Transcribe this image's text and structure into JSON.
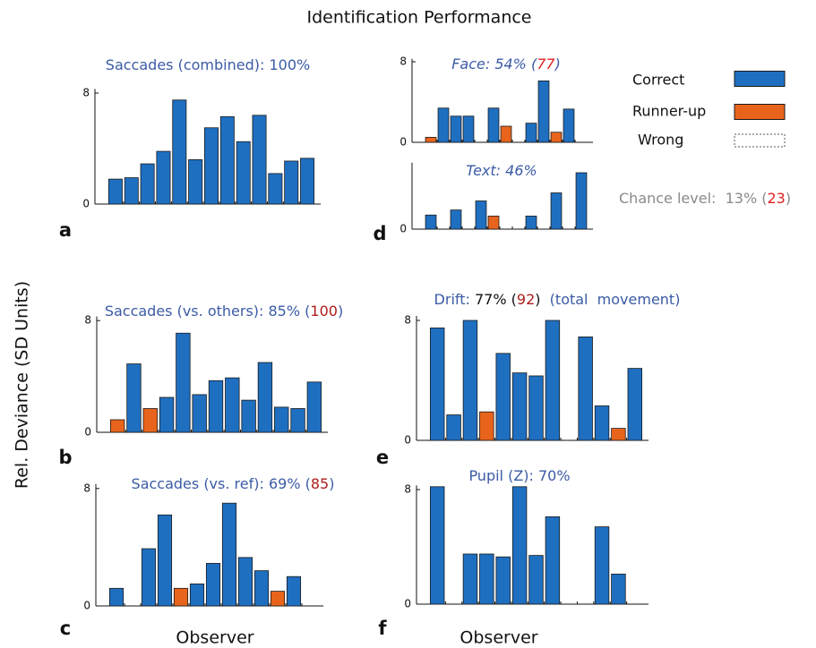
{
  "title": "Identification Performance",
  "y_label": "Rel. Deviance (SD Units)",
  "legend": [
    {
      "name": "Correct",
      "color": "#1f6fc0"
    },
    {
      "name": "Runner-up",
      "color": "#e8641c"
    },
    {
      "name": "Wrong",
      "color": "none"
    }
  ],
  "annotation": [
    {
      "text": "Chance level:  13% (",
      "color": "#8a8a8a"
    },
    {
      "text": "23",
      "color": "#e02020"
    },
    {
      "text": ")",
      "color": "#8a8a8a"
    }
  ],
  "chart_data": [
    {
      "type": "bar",
      "panel": "a",
      "title": [
        {
          "text": "Saccades (combined): 100%",
          "color": "#3b5ba5"
        }
      ],
      "italic": false,
      "values": [
        1.8,
        1.9,
        2.9,
        3.8,
        7.5,
        3.2,
        5.5,
        6.3,
        4.5,
        6.4,
        2.2,
        3.1,
        3.3
      ],
      "colors": [
        "#1f6fc0",
        "#1f6fc0",
        "#1f6fc0",
        "#1f6fc0",
        "#1f6fc0",
        "#1f6fc0",
        "#1f6fc0",
        "#1f6fc0",
        "#1f6fc0",
        "#1f6fc0",
        "#1f6fc0",
        "#1f6fc0",
        "#1f6fc0"
      ],
      "ylim": [
        0,
        8.3
      ],
      "yticks": [
        0,
        8
      ]
    },
    {
      "type": "bar",
      "panel": "b",
      "title": [
        {
          "text": "Saccades (vs. others): 85% (",
          "color": "#3b5ba5"
        },
        {
          "text": "100",
          "color": "#b01c1c"
        },
        {
          "text": ")",
          "color": "#3b5ba5"
        }
      ],
      "italic": false,
      "values": [
        0.9,
        4.9,
        1.7,
        2.5,
        7.1,
        2.7,
        3.7,
        3.9,
        2.3,
        5.0,
        1.8,
        1.7,
        3.6
      ],
      "colors": [
        "#e8641c",
        "#1f6fc0",
        "#e8641c",
        "#1f6fc0",
        "#1f6fc0",
        "#1f6fc0",
        "#1f6fc0",
        "#1f6fc0",
        "#1f6fc0",
        "#1f6fc0",
        "#1f6fc0",
        "#1f6fc0",
        "#1f6fc0"
      ],
      "ylim": [
        0,
        8.3
      ],
      "yticks": [
        0,
        8
      ]
    },
    {
      "type": "bar",
      "panel": "c",
      "x_label": "Observer",
      "title": [
        {
          "text": "Saccades (vs. ref): 69% (",
          "color": "#3b5ba5"
        },
        {
          "text": "85",
          "color": "#b01c1c"
        },
        {
          "text": ")",
          "color": "#3b5ba5"
        }
      ],
      "italic": false,
      "values": [
        1.2,
        null,
        3.9,
        6.2,
        1.2,
        1.5,
        2.9,
        7.0,
        3.3,
        2.4,
        1.0,
        2.0,
        null
      ],
      "colors": [
        "#1f6fc0",
        null,
        "#1f6fc0",
        "#1f6fc0",
        "#e8641c",
        "#1f6fc0",
        "#1f6fc0",
        "#1f6fc0",
        "#1f6fc0",
        "#1f6fc0",
        "#e8641c",
        "#1f6fc0",
        null
      ],
      "ylim": [
        0,
        8.3
      ],
      "yticks": [
        0,
        8
      ]
    },
    {
      "type": "bar",
      "panel": "d",
      "title": [
        {
          "text": "Face: 54% (",
          "color": "#3b5ba5"
        },
        {
          "text": "77",
          "color": "#e02020"
        },
        {
          "text": ")",
          "color": "#3b5ba5"
        }
      ],
      "italic": true,
      "values": [
        0.5,
        3.4,
        2.6,
        2.6,
        null,
        3.4,
        1.6,
        null,
        1.9,
        6.1,
        1.0,
        3.3,
        null
      ],
      "colors": [
        "#e8641c",
        "#1f6fc0",
        "#1f6fc0",
        "#1f6fc0",
        null,
        "#1f6fc0",
        "#e8641c",
        null,
        "#1f6fc0",
        "#1f6fc0",
        "#e8641c",
        "#1f6fc0",
        null
      ],
      "ylim": [
        0,
        8.3
      ],
      "yticks": [
        0,
        8
      ]
    },
    {
      "type": "bar",
      "title": [
        {
          "text": "Text: 46%",
          "color": "#3b5ba5"
        }
      ],
      "italic": true,
      "values": [
        1.4,
        null,
        1.9,
        null,
        2.8,
        1.3,
        null,
        null,
        1.3,
        null,
        3.6,
        null,
        5.6
      ],
      "colors": [
        "#1f6fc0",
        null,
        "#1f6fc0",
        null,
        "#1f6fc0",
        "#e8641c",
        null,
        null,
        "#1f6fc0",
        null,
        "#1f6fc0",
        null,
        "#1f6fc0"
      ],
      "ylim": [
        0,
        6.6
      ],
      "yticks": [
        0
      ]
    },
    {
      "type": "bar",
      "panel": "e",
      "title": [
        {
          "text": "Drift:",
          "color": "#3b5ba5"
        },
        {
          "text": " 77% (",
          "color": "#111111"
        },
        {
          "text": "92",
          "color": "#b01c1c"
        },
        {
          "text": ")",
          "color": "#111111"
        },
        {
          "text": "  (total  movement)",
          "color": "#3b5ba5"
        }
      ],
      "italic": false,
      "values": [
        7.5,
        1.7,
        8.0,
        1.9,
        5.8,
        4.5,
        4.3,
        8.0,
        null,
        6.9,
        2.3,
        0.8,
        4.8
      ],
      "colors": [
        "#1f6fc0",
        "#1f6fc0",
        "#1f6fc0",
        "#e8641c",
        "#1f6fc0",
        "#1f6fc0",
        "#1f6fc0",
        "#1f6fc0",
        null,
        "#1f6fc0",
        "#1f6fc0",
        "#e8641c",
        "#1f6fc0"
      ],
      "ylim": [
        0,
        8.3
      ],
      "yticks": [
        0,
        8
      ]
    },
    {
      "type": "bar",
      "panel": "f",
      "x_label": "Observer",
      "title": [
        {
          "text": "Pupil (Z): 70%",
          "color": "#3b5ba5"
        }
      ],
      "italic": false,
      "values": [
        8.2,
        null,
        3.5,
        3.5,
        3.3,
        8.2,
        3.4,
        6.1,
        null,
        null,
        5.4,
        2.1,
        null
      ],
      "colors": [
        "#1f6fc0",
        null,
        "#1f6fc0",
        "#1f6fc0",
        "#1f6fc0",
        "#1f6fc0",
        "#1f6fc0",
        "#1f6fc0",
        null,
        null,
        "#1f6fc0",
        "#1f6fc0",
        null
      ],
      "ylim": [
        0,
        8.3
      ],
      "yticks": [
        0,
        8
      ]
    }
  ]
}
